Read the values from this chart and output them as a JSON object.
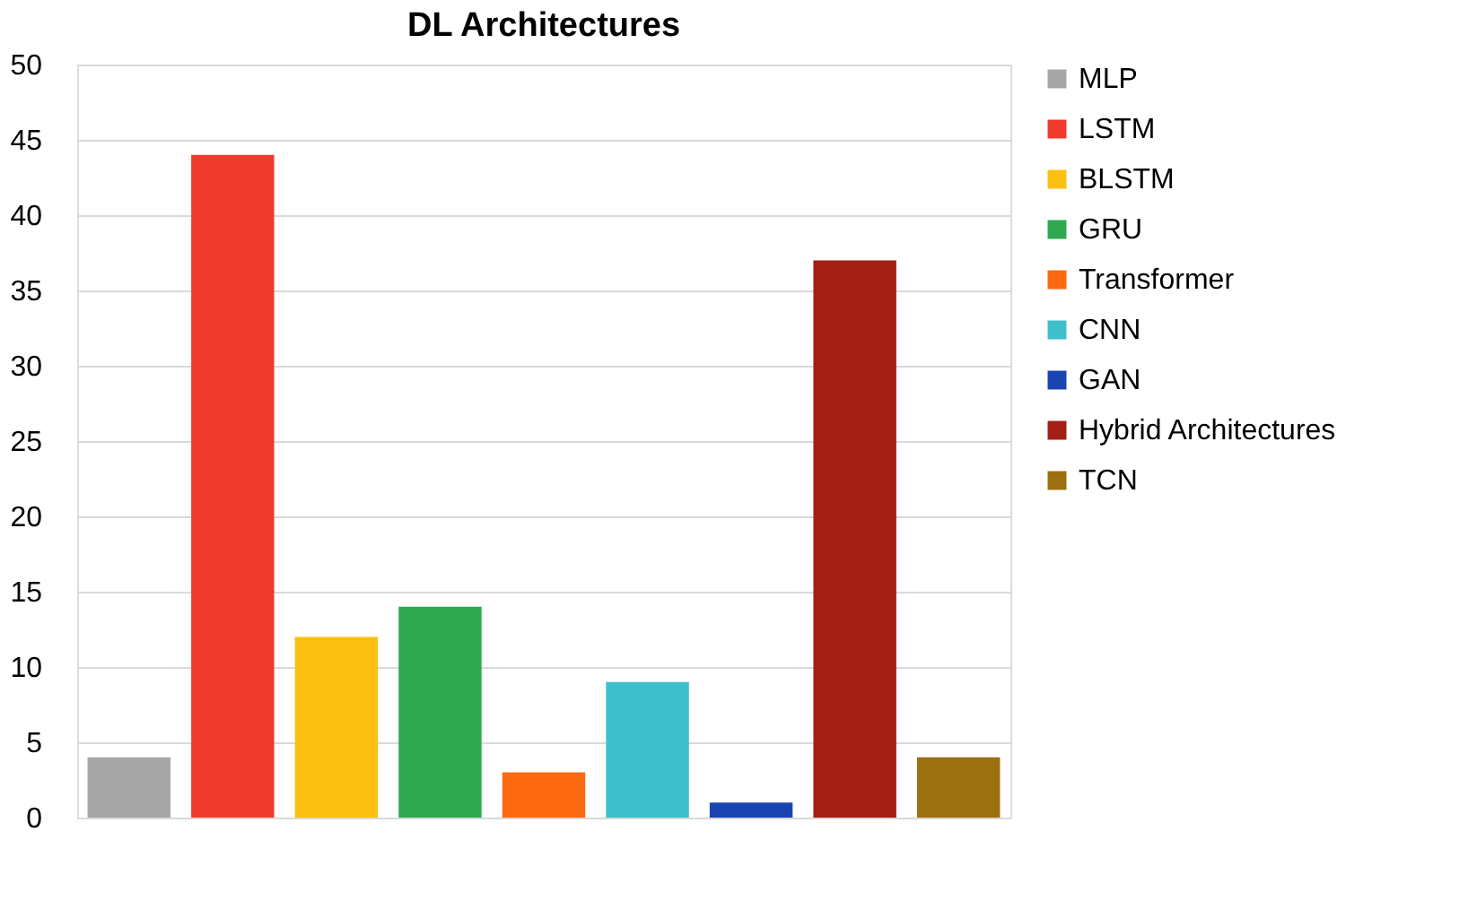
{
  "chart_data": {
    "type": "bar",
    "title": "DL Architectures",
    "categories": [
      null,
      null,
      null,
      null,
      null,
      null,
      null,
      null,
      null
    ],
    "series": [
      {
        "name": "MLP",
        "color": "#a6a6a6",
        "values": [
          4,
          null,
          null,
          null,
          null,
          null,
          null,
          null,
          null
        ]
      },
      {
        "name": "LSTM",
        "color": "#ee3b2c",
        "values": [
          null,
          44,
          null,
          null,
          null,
          null,
          null,
          null,
          null
        ]
      },
      {
        "name": "BLSTM",
        "color": "#fcc010",
        "values": [
          null,
          null,
          12,
          null,
          null,
          null,
          null,
          null,
          null
        ]
      },
      {
        "name": "GRU",
        "color": "#2fa84f",
        "values": [
          null,
          null,
          null,
          14,
          null,
          null,
          null,
          null,
          null
        ]
      },
      {
        "name": "Transformer",
        "color": "#fd6a12",
        "values": [
          null,
          null,
          null,
          null,
          3,
          null,
          null,
          null,
          null
        ]
      },
      {
        "name": "CNN",
        "color": "#3ec0ca",
        "values": [
          null,
          null,
          null,
          null,
          null,
          9,
          null,
          null,
          null
        ]
      },
      {
        "name": "GAN",
        "color": "#1a44b0",
        "values": [
          null,
          null,
          null,
          null,
          null,
          null,
          1,
          null,
          null
        ]
      },
      {
        "name": "Hybrid Architectures",
        "color": "#a31f15",
        "values": [
          null,
          null,
          null,
          null,
          null,
          null,
          null,
          37,
          null
        ]
      },
      {
        "name": "TCN",
        "color": "#9c7010",
        "values": [
          null,
          null,
          null,
          null,
          null,
          null,
          null,
          null,
          4
        ]
      }
    ],
    "ylim": [
      0,
      50
    ],
    "yticks": [
      0,
      5,
      10,
      15,
      20,
      25,
      30,
      35,
      40,
      45,
      50
    ],
    "grid": "y",
    "legend": "right",
    "tick_labels": "y"
  }
}
